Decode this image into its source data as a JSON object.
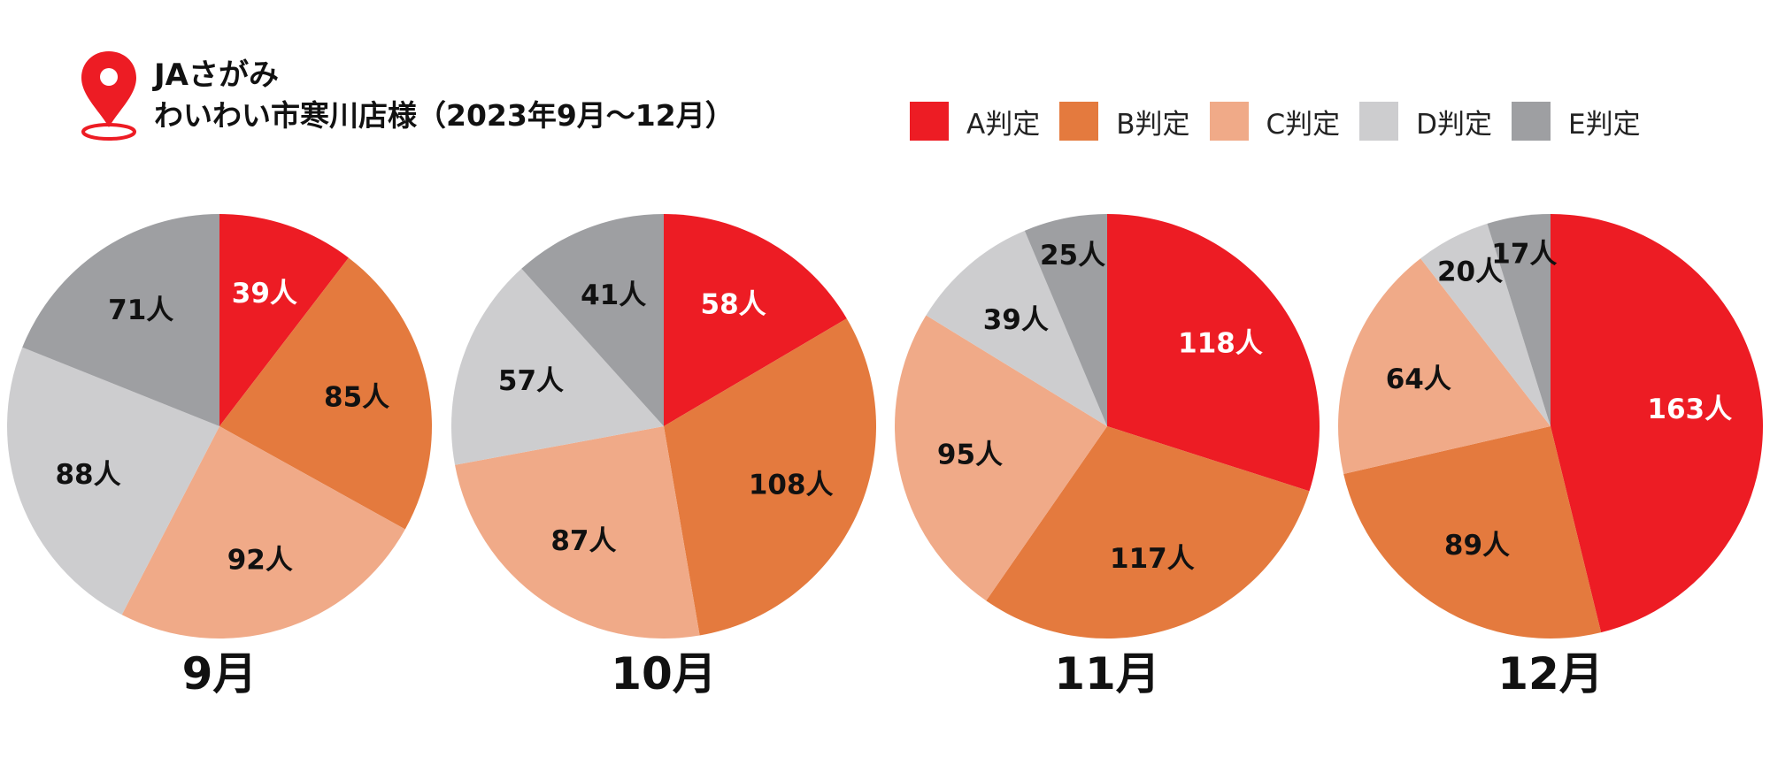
{
  "header": {
    "title_line1": "JAさがみ",
    "title_line2": "わいわい市寒川店様（2023年9月〜12月）"
  },
  "colors": {
    "A": "#ED1C24",
    "B": "#E47A3E",
    "C": "#F0AA88",
    "D": "#CDCDCF",
    "E": "#9E9FA2",
    "pin": "#ED1C24"
  },
  "legend": [
    {
      "key": "A",
      "label": "A判定"
    },
    {
      "key": "B",
      "label": "B判定"
    },
    {
      "key": "C",
      "label": "C判定"
    },
    {
      "key": "D",
      "label": "D判定"
    },
    {
      "key": "E",
      "label": "E判定"
    }
  ],
  "chart_data": [
    {
      "type": "pie",
      "title": "9月",
      "categories": [
        "A判定",
        "B判定",
        "C判定",
        "D判定",
        "E判定"
      ],
      "values": [
        39,
        85,
        92,
        88,
        71
      ],
      "data_labels": [
        "39人",
        "85人",
        "92人",
        "88人",
        "71人"
      ]
    },
    {
      "type": "pie",
      "title": "10月",
      "categories": [
        "A判定",
        "B判定",
        "C判定",
        "D判定",
        "E判定"
      ],
      "values": [
        58,
        108,
        87,
        57,
        41
      ],
      "data_labels": [
        "58人",
        "108人",
        "87人",
        "57人",
        "41人"
      ]
    },
    {
      "type": "pie",
      "title": "11月",
      "categories": [
        "A判定",
        "B判定",
        "C判定",
        "D判定",
        "E判定"
      ],
      "values": [
        118,
        117,
        95,
        39,
        25
      ],
      "data_labels": [
        "118人",
        "117人",
        "95人",
        "39人",
        "25人"
      ]
    },
    {
      "type": "pie",
      "title": "12月",
      "categories": [
        "A判定",
        "B判定",
        "C判定",
        "D判定",
        "E判定"
      ],
      "values": [
        163,
        89,
        64,
        20,
        17
      ],
      "data_labels": [
        "163人",
        "89人",
        "64人",
        "20人",
        "17人"
      ]
    }
  ]
}
